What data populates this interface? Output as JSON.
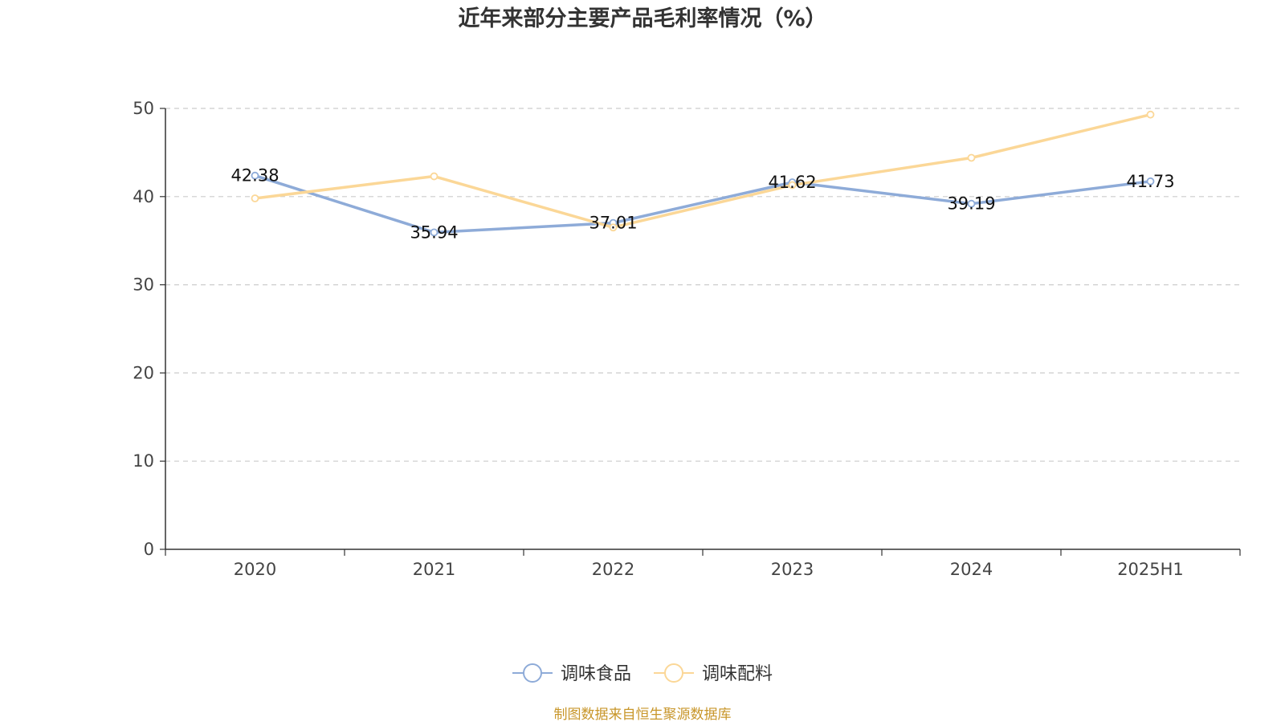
{
  "chart_data": {
    "type": "line",
    "title": "近年来部分主要产品毛利率情况（%）",
    "categories": [
      "2020",
      "2021",
      "2022",
      "2023",
      "2024",
      "2025H1"
    ],
    "ylim": [
      0,
      50
    ],
    "yticks": [
      0,
      10,
      20,
      30,
      40,
      50
    ],
    "grid": true,
    "legend_position": "bottom-center",
    "series": [
      {
        "name": "调味食品",
        "color": "#8eabd8",
        "values": [
          42.38,
          35.94,
          37.01,
          41.62,
          39.19,
          41.73
        ],
        "labels": [
          "42.38",
          "35.94",
          "37.01",
          "41.62",
          "39.19",
          "41.73"
        ]
      },
      {
        "name": "调味配料",
        "color": "#fbd797",
        "values": [
          39.8,
          42.3,
          36.5,
          41.3,
          44.4,
          49.3
        ]
      }
    ],
    "source": "制图数据来自恒生聚源数据库"
  }
}
